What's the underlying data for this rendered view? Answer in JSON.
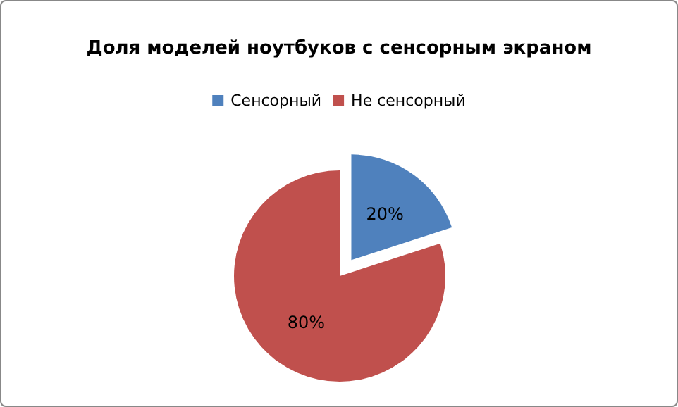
{
  "chart_data": {
    "type": "pie",
    "title": "Доля моделей ноутбуков с сенсорным экраном",
    "categories": [
      "Сенсорный",
      "Не сенсорный"
    ],
    "values": [
      20,
      80
    ],
    "colors": [
      "#4f81bd",
      "#c0504d"
    ],
    "value_labels": [
      "20%",
      "80%"
    ],
    "legend": "top"
  }
}
